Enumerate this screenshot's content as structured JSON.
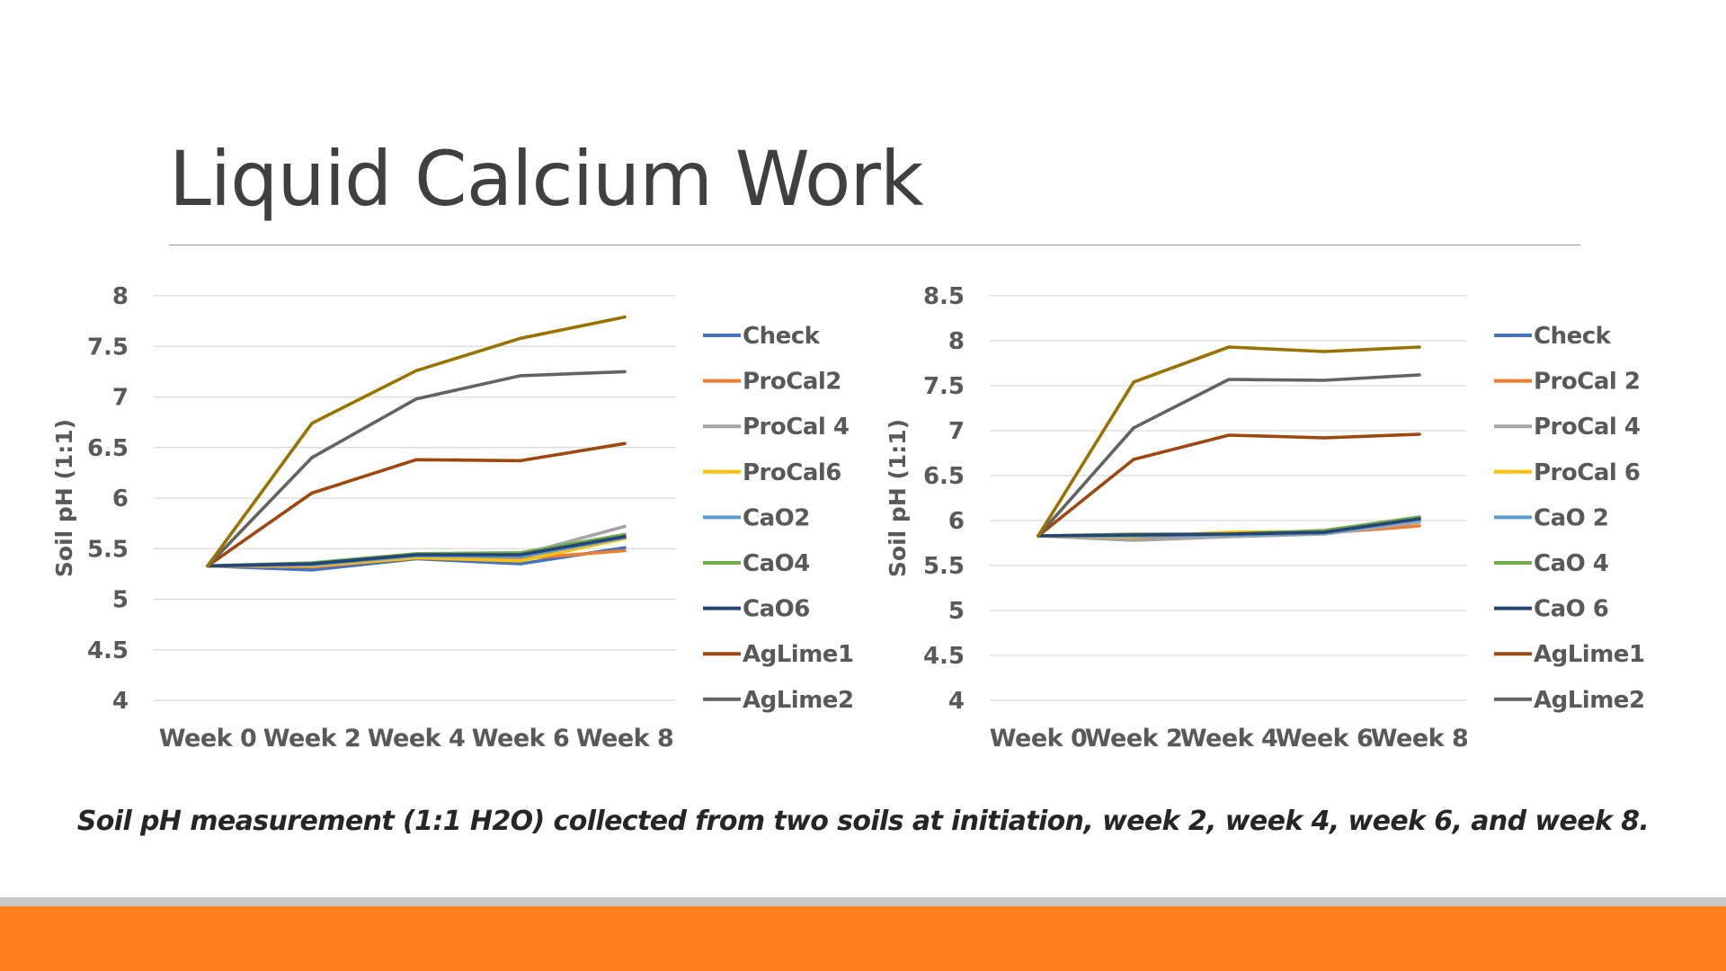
{
  "slide": {
    "title": "Liquid Calcium Work",
    "caption": "Soil pH measurement (1:1 H2O) collected from two soils at initiation, week 2, week 4, week 6, and week 8."
  },
  "chart_data": [
    {
      "type": "line",
      "title": "",
      "xlabel": "",
      "ylabel": "Soil pH (1:1)",
      "categories": [
        "Week 0",
        "Week 2",
        "Week 4",
        "Week 6",
        "Week 8"
      ],
      "ylim": [
        4,
        8
      ],
      "yticks": [
        "4",
        "4.5",
        "5",
        "5.5",
        "6",
        "6.5",
        "7",
        "7.5",
        "8"
      ],
      "grid": true,
      "legend": "right",
      "series": [
        {
          "name": "Check",
          "color": "#4472c4",
          "values": [
            5.33,
            5.29,
            5.4,
            5.35,
            5.51
          ]
        },
        {
          "name": "ProCal2",
          "color": "#ed7d31",
          "values": [
            5.33,
            5.32,
            5.41,
            5.4,
            5.48
          ]
        },
        {
          "name": "ProCal 4",
          "color": "#a5a5a5",
          "values": [
            5.33,
            5.34,
            5.41,
            5.44,
            5.72
          ]
        },
        {
          "name": "ProCal6",
          "color": "#ffc000",
          "values": [
            5.33,
            5.33,
            5.41,
            5.38,
            5.6
          ]
        },
        {
          "name": "CaO2",
          "color": "#5b9bd5",
          "values": [
            5.33,
            5.34,
            5.43,
            5.42,
            5.61
          ]
        },
        {
          "name": "CaO4",
          "color": "#70ad47",
          "values": [
            5.33,
            5.36,
            5.45,
            5.46,
            5.64
          ]
        },
        {
          "name": "CaO6",
          "color": "#264478",
          "values": [
            5.33,
            5.35,
            5.44,
            5.44,
            5.62
          ]
        },
        {
          "name": "AgLime1",
          "color": "#9e480e",
          "values": [
            5.33,
            6.05,
            6.38,
            6.37,
            6.54
          ]
        },
        {
          "name": "AgLime2",
          "color": "#636363",
          "values": [
            5.33,
            6.4,
            6.98,
            7.21,
            7.25
          ]
        },
        {
          "name": "",
          "color": "#997300",
          "values": [
            5.33,
            6.74,
            7.26,
            7.58,
            7.79
          ]
        }
      ]
    },
    {
      "type": "line",
      "title": "",
      "xlabel": "",
      "ylabel": "Soil pH (1:1)",
      "categories": [
        "Week 0",
        "Week 2",
        "Week 4",
        "Week 6",
        "Week 8"
      ],
      "ylim": [
        4,
        8.5
      ],
      "yticks": [
        "4",
        "4.5",
        "5",
        "5.5",
        "6",
        "6.5",
        "7",
        "7.5",
        "8",
        "8.5"
      ],
      "grid": true,
      "legend": "right",
      "series": [
        {
          "name": "Check",
          "color": "#4472c4",
          "values": [
            5.83,
            5.84,
            5.85,
            5.88,
            6.0
          ]
        },
        {
          "name": "ProCal 2",
          "color": "#ed7d31",
          "values": [
            5.83,
            5.81,
            5.84,
            5.86,
            5.94
          ]
        },
        {
          "name": "ProCal 4",
          "color": "#a5a5a5",
          "values": [
            5.83,
            5.78,
            5.82,
            5.85,
            5.98
          ]
        },
        {
          "name": "ProCal 6",
          "color": "#ffc000",
          "values": [
            5.83,
            5.82,
            5.87,
            5.88,
            6.02
          ]
        },
        {
          "name": "CaO 2",
          "color": "#5b9bd5",
          "values": [
            5.83,
            5.83,
            5.84,
            5.86,
            6.01
          ]
        },
        {
          "name": "CaO 4",
          "color": "#70ad47",
          "values": [
            5.83,
            5.85,
            5.85,
            5.89,
            6.04
          ]
        },
        {
          "name": "CaO 6",
          "color": "#264478",
          "values": [
            5.83,
            5.84,
            5.85,
            5.87,
            6.02
          ]
        },
        {
          "name": "AgLime1",
          "color": "#9e480e",
          "values": [
            5.83,
            6.68,
            6.95,
            6.92,
            6.96
          ]
        },
        {
          "name": "AgLime2",
          "color": "#636363",
          "values": [
            5.83,
            7.03,
            7.57,
            7.56,
            7.62
          ]
        },
        {
          "name": "",
          "color": "#997300",
          "values": [
            5.83,
            7.54,
            7.93,
            7.88,
            7.93
          ]
        }
      ]
    }
  ]
}
